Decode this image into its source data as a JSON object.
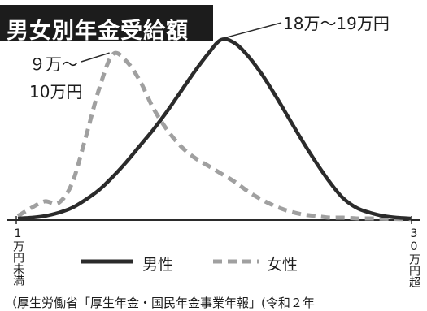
{
  "chart_data": {
    "type": "line",
    "title": "男女別年金受給額",
    "x_range_labels": [
      "1万円未満",
      "30万円超"
    ],
    "x": [
      1,
      2,
      3,
      4,
      5,
      6,
      7,
      8,
      9,
      10,
      11,
      12,
      13,
      14,
      15,
      16,
      17,
      18,
      19,
      20,
      21,
      22,
      23,
      24,
      25,
      26,
      27,
      28,
      29,
      30
    ],
    "series": [
      {
        "name": "男性",
        "style": "solid",
        "values": [
          0.5,
          1,
          2,
          4,
          7,
          12,
          18,
          26,
          35,
          45,
          55,
          66,
          78,
          90,
          101,
          110,
          108,
          100,
          89,
          76,
          62,
          48,
          35,
          23,
          13,
          7,
          4,
          2,
          1,
          0.5
        ]
      },
      {
        "name": "女性",
        "style": "dashed",
        "values": [
          2,
          7,
          11,
          10,
          22,
          50,
          80,
          101,
          97,
          85,
          68,
          55,
          45,
          38,
          33,
          28,
          23,
          17,
          12,
          8,
          5,
          3,
          2,
          1,
          1,
          0.5,
          0.5,
          0.3,
          0.2,
          0.1
        ]
      }
    ],
    "ylim": [
      0,
      115
    ],
    "annotations": [
      {
        "text": "18万～19万円",
        "target_series": 0,
        "target_x": 16
      },
      {
        "lines": [
          "９万～",
          "10万円"
        ],
        "target_series": 1,
        "target_x": 8
      }
    ],
    "legend": {
      "placement": "bottom-center"
    },
    "grid": false,
    "colors": {
      "line": "#2b2b2b",
      "dash": "#a0a0a0",
      "axis": "#2b2b2b",
      "title_bg": "#1c1c1c"
    },
    "source": "（厚生労働省「厚生年金・国民年金事業年報」(令和２年"
  }
}
